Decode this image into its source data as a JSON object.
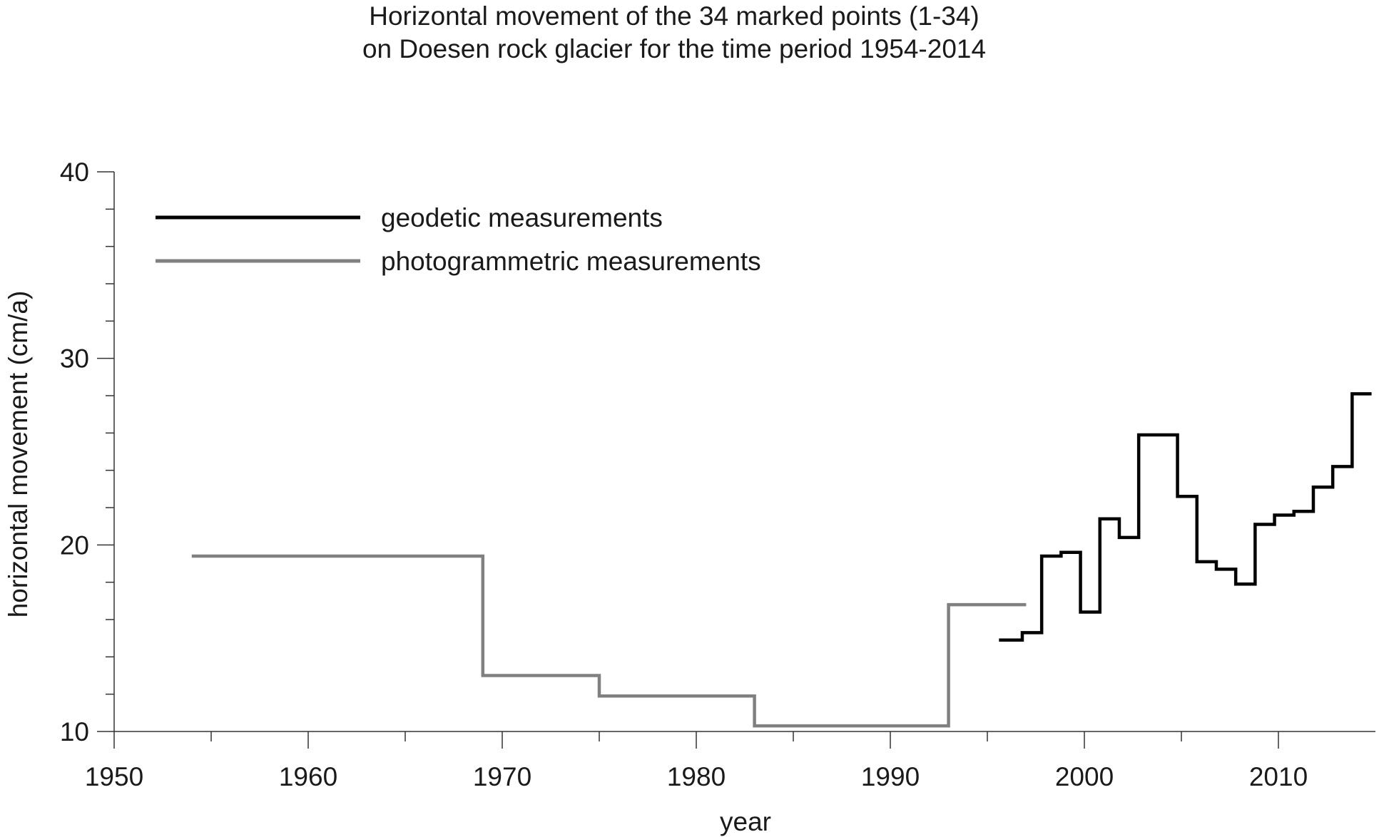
{
  "chart_data": {
    "type": "line",
    "title": [
      "Horizontal movement of the 34 marked points (1-34)",
      "on Doesen rock glacier for the time period 1954-2014"
    ],
    "xlabel": "year",
    "ylabel": "horizontal movement (cm/a)",
    "xlim": [
      1950,
      2015
    ],
    "ylim": [
      10,
      40
    ],
    "x_major_ticks": [
      1950,
      1960,
      1970,
      1980,
      1990,
      2000,
      2010
    ],
    "x_minor_ticks": [
      1955,
      1965,
      1975,
      1985,
      1995,
      2005
    ],
    "y_major_ticks": [
      10,
      20,
      30,
      40
    ],
    "y_minor_tick_step": 2,
    "grid": false,
    "legend_position": "top-left",
    "series": [
      {
        "name": "geodetic measurements",
        "style": "step",
        "color": "#000000",
        "segments": [
          {
            "x": [
              1995.6,
              1996.8
            ],
            "y": 14.9
          },
          {
            "x": [
              1996.8,
              1997.8
            ],
            "y": 15.3
          },
          {
            "x": [
              1997.8,
              1998.8
            ],
            "y": 19.4
          },
          {
            "x": [
              1998.8,
              1999.8
            ],
            "y": 19.6
          },
          {
            "x": [
              1999.8,
              2000.8
            ],
            "y": 16.4
          },
          {
            "x": [
              2000.8,
              2001.8
            ],
            "y": 21.4
          },
          {
            "x": [
              2001.8,
              2002.8
            ],
            "y": 20.4
          },
          {
            "x": [
              2002.8,
              2004.8
            ],
            "y": 25.9
          },
          {
            "x": [
              2004.8,
              2005.8
            ],
            "y": 22.6
          },
          {
            "x": [
              2005.8,
              2006.8
            ],
            "y": 19.1
          },
          {
            "x": [
              2006.8,
              2007.8
            ],
            "y": 18.7
          },
          {
            "x": [
              2007.8,
              2008.8
            ],
            "y": 17.9
          },
          {
            "x": [
              2008.8,
              2009.8
            ],
            "y": 21.1
          },
          {
            "x": [
              2009.8,
              2010.8
            ],
            "y": 21.6
          },
          {
            "x": [
              2010.8,
              2011.8
            ],
            "y": 21.8
          },
          {
            "x": [
              2011.8,
              2012.8
            ],
            "y": 23.1
          },
          {
            "x": [
              2012.8,
              2013.8
            ],
            "y": 24.2
          },
          {
            "x": [
              2013.8,
              2014.8
            ],
            "y": 28.1
          }
        ]
      },
      {
        "name": "photogrammetric measurements",
        "style": "step",
        "color": "#808080",
        "segments": [
          {
            "x": [
              1954,
              1969
            ],
            "y": 19.4
          },
          {
            "x": [
              1969,
              1975
            ],
            "y": 13.0
          },
          {
            "x": [
              1975,
              1983
            ],
            "y": 11.9
          },
          {
            "x": [
              1983,
              1993
            ],
            "y": 10.3
          },
          {
            "x": [
              1993,
              1997
            ],
            "y": 16.8
          }
        ]
      }
    ]
  }
}
